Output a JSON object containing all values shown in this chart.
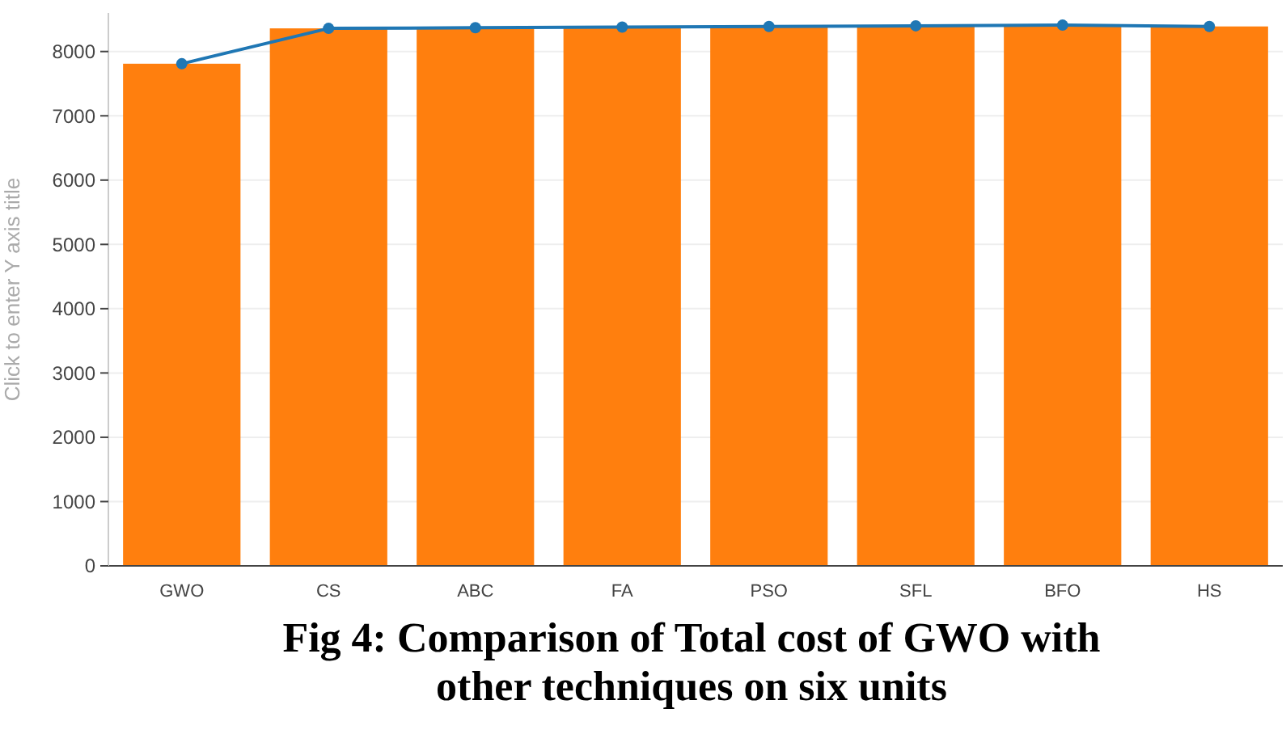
{
  "chart_data": {
    "type": "bar",
    "title": "Fig 4: Comparison of Total cost of GWO with other techniques on six units",
    "ylabel": "Click to enter Y axis title",
    "categories": [
      "GWO",
      "CS",
      "ABC",
      "FA",
      "PSO",
      "SFL",
      "BFO",
      "HS"
    ],
    "series": [
      {
        "color": "#ff7f0e",
        "values": [
          7810,
          8360,
          8370,
          8380,
          8390,
          8400,
          8410,
          8390
        ]
      },
      {
        "type": "line",
        "color": "#1f77b4",
        "values": [
          7810,
          8360,
          8370,
          8380,
          8390,
          8400,
          8410,
          8390
        ]
      }
    ],
    "ylim": [
      0,
      8600
    ],
    "yticks": [
      0,
      1000,
      2000,
      3000,
      4000,
      5000,
      6000,
      7000,
      8000
    ],
    "grid": "y",
    "marker": "circle"
  }
}
